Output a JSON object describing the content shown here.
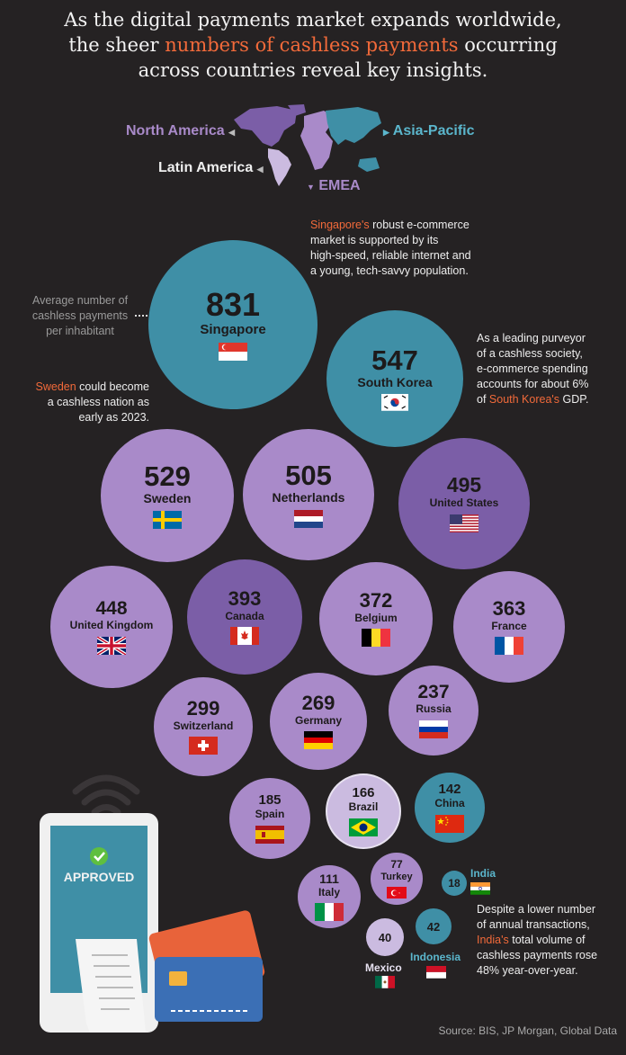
{
  "header": {
    "line1": "As the digital payments market expands worldwide,",
    "line2_pre": "the sheer ",
    "line2_hl": "numbers of cashless payments",
    "line2_post": " occurring",
    "line3": "across countries reveal key insights."
  },
  "legend": {
    "north_america": "North America",
    "latin_america": "Latin America",
    "emea": "EMEA",
    "asia_pacific": "Asia-Pacific"
  },
  "colors": {
    "north_america": "#7b5ea7",
    "latin_america": "#cbbbe0",
    "emea": "#a98ac9",
    "asia_pacific": "#3f8fa6",
    "highlight": "#f26a3a",
    "background": "#252223"
  },
  "annotations": {
    "avg_line1": "Average number of",
    "avg_line2": "cashless payments",
    "avg_line3": "per inhabitant",
    "sg_hl": "Singapore's",
    "sg_line1_rest": " robust e-commerce",
    "sg_line2": "market is supported by its",
    "sg_line3": "high-speed, reliable internet and",
    "sg_line4": "a young, tech-savvy population.",
    "kr_line1": "As a leading purveyor",
    "kr_line2": "of a cashless society,",
    "kr_line3": "e-commerce spending",
    "kr_line4": "accounts for about 6%",
    "kr_line5_pre": "of ",
    "kr_line5_hl": "South Korea's",
    "kr_line5_post": " GDP.",
    "se_hl": "Sweden",
    "se_line1_rest": " could become",
    "se_line2": "a cashless nation as",
    "se_line3": "early as 2023.",
    "in_line1": "Despite a lower number",
    "in_line2": "of annual transactions,",
    "in_line3_hl": "India's",
    "in_line3_rest": " total volume of",
    "in_line4": "cashless payments rose",
    "in_line5": "48% year-over-year."
  },
  "phone": {
    "approved": "APPROVED"
  },
  "source": "Source: BIS, JP Morgan, Global Data",
  "chart_data": {
    "type": "bubble",
    "title": "",
    "measure": "Average number of cashless payments per inhabitant",
    "countries": [
      {
        "name": "Singapore",
        "value": 831,
        "region": "asia_pacific",
        "flag": "singapore"
      },
      {
        "name": "South Korea",
        "value": 547,
        "region": "asia_pacific",
        "flag": "south-korea"
      },
      {
        "name": "Sweden",
        "value": 529,
        "region": "emea",
        "flag": "sweden"
      },
      {
        "name": "Netherlands",
        "value": 505,
        "region": "emea",
        "flag": "netherlands"
      },
      {
        "name": "United States",
        "value": 495,
        "region": "north_america",
        "flag": "united-states"
      },
      {
        "name": "United Kingdom",
        "value": 448,
        "region": "emea",
        "flag": "united-kingdom"
      },
      {
        "name": "Canada",
        "value": 393,
        "region": "north_america",
        "flag": "canada"
      },
      {
        "name": "Belgium",
        "value": 372,
        "region": "emea",
        "flag": "belgium"
      },
      {
        "name": "France",
        "value": 363,
        "region": "emea",
        "flag": "france"
      },
      {
        "name": "Switzerland",
        "value": 299,
        "region": "emea",
        "flag": "switzerland"
      },
      {
        "name": "Germany",
        "value": 269,
        "region": "emea",
        "flag": "germany"
      },
      {
        "name": "Russia",
        "value": 237,
        "region": "emea",
        "flag": "russia"
      },
      {
        "name": "Spain",
        "value": 185,
        "region": "emea",
        "flag": "spain"
      },
      {
        "name": "Brazil",
        "value": 166,
        "region": "latin_america",
        "flag": "brazil"
      },
      {
        "name": "China",
        "value": 142,
        "region": "asia_pacific",
        "flag": "china"
      },
      {
        "name": "Italy",
        "value": 111,
        "region": "emea",
        "flag": "italy"
      },
      {
        "name": "Turkey",
        "value": 77,
        "region": "emea",
        "flag": "turkey"
      },
      {
        "name": "India",
        "value": 18,
        "region": "asia_pacific",
        "flag": "india"
      },
      {
        "name": "Indonesia",
        "value": 42,
        "region": "asia_pacific",
        "flag": "indonesia"
      },
      {
        "name": "Mexico",
        "value": 40,
        "region": "latin_america",
        "flag": "mexico"
      }
    ]
  }
}
